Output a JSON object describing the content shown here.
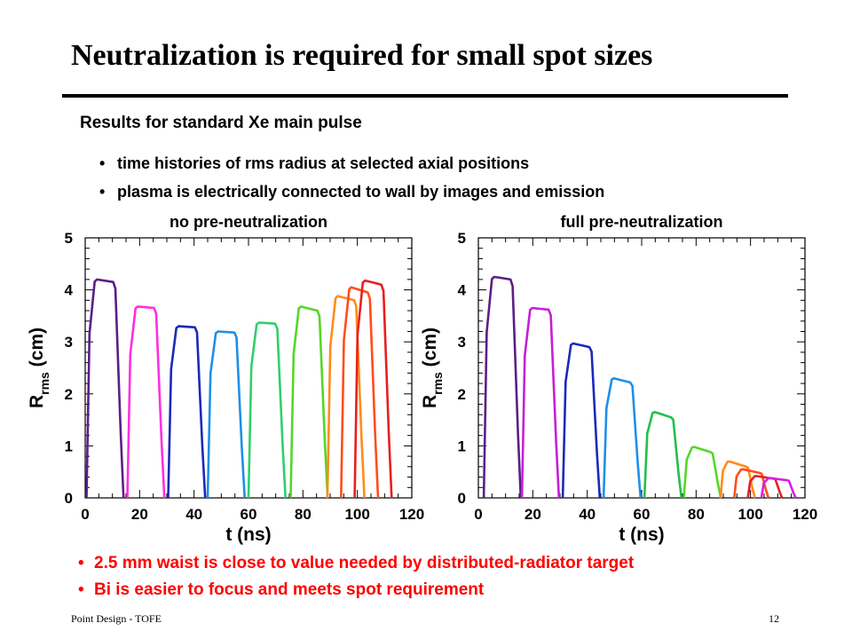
{
  "slide": {
    "title": "Neutralization is required for small spot sizes",
    "subtitle": "Results for standard Xe main pulse",
    "bullets": [
      "time histories of rms radius at selected axial positions",
      "plasma is electrically connected to wall by images and emission"
    ],
    "red_bullets": [
      "2.5 mm waist is close to value needed by distributed-radiator target",
      "Bi is easier to focus and meets spot requirement"
    ],
    "bullet_symbol": "•",
    "footer_left": "Point Design - TOFE",
    "page_number": "12",
    "accent_color": "#ff0000"
  },
  "chart_data": [
    {
      "type": "line",
      "title": "no pre-neutralization",
      "xlabel": "t (ns)",
      "ylabel_main": "R",
      "ylabel_sub": "rms",
      "ylabel_unit": " (cm)",
      "xlim": [
        0,
        120
      ],
      "ylim": [
        0,
        5
      ],
      "xticks": [
        0,
        20,
        40,
        60,
        80,
        100,
        120
      ],
      "yticks": [
        0,
        1,
        2,
        3,
        4,
        5
      ],
      "series": [
        {
          "color": "#5a1f86",
          "t0": 0.5,
          "rise": 3,
          "fall": 3,
          "peak": 4.2,
          "end": 4.15
        },
        {
          "color": "#ff2ee0",
          "t0": 15.5,
          "rise": 3,
          "fall": 3,
          "peak": 3.68,
          "end": 3.65
        },
        {
          "color": "#1a2ab8",
          "t0": 30.5,
          "rise": 3,
          "fall": 3,
          "peak": 3.3,
          "end": 3.28
        },
        {
          "color": "#1f8fe8",
          "t0": 45,
          "rise": 3,
          "fall": 3,
          "peak": 3.2,
          "end": 3.18
        },
        {
          "color": "#2fd06a",
          "t0": 60,
          "rise": 3,
          "fall": 3,
          "peak": 3.37,
          "end": 3.35
        },
        {
          "color": "#56d629",
          "t0": 75.5,
          "rise": 3,
          "fall": 3,
          "peak": 3.68,
          "end": 3.6
        },
        {
          "color": "#ff8c1a",
          "t0": 89,
          "rise": 3,
          "fall": 3,
          "peak": 3.88,
          "end": 3.8
        },
        {
          "color": "#ff4d1a",
          "t0": 94,
          "rise": 3,
          "fall": 3,
          "peak": 4.05,
          "end": 3.95
        },
        {
          "color": "#e81f1f",
          "t0": 99,
          "rise": 3,
          "fall": 3,
          "peak": 4.18,
          "end": 4.1
        }
      ]
    },
    {
      "type": "line",
      "title": "full pre-neutralization",
      "xlabel": "t (ns)",
      "ylabel_main": "R",
      "ylabel_sub": "rms",
      "ylabel_unit": " (cm)",
      "xlim": [
        0,
        120
      ],
      "ylim": [
        0,
        5
      ],
      "xticks": [
        0,
        20,
        40,
        60,
        80,
        100,
        120
      ],
      "yticks": [
        0,
        1,
        2,
        3,
        4,
        5
      ],
      "series": [
        {
          "color": "#5a1f86",
          "t0": 2,
          "rise": 3,
          "fall": 3,
          "peak": 4.25,
          "end": 4.2
        },
        {
          "color": "#c61fd6",
          "t0": 16,
          "rise": 3,
          "fall": 3,
          "peak": 3.65,
          "end": 3.62
        },
        {
          "color": "#1a2ab8",
          "t0": 31,
          "rise": 3,
          "fall": 3,
          "peak": 2.97,
          "end": 2.9
        },
        {
          "color": "#1f8fe8",
          "t0": 46,
          "rise": 3,
          "fall": 3,
          "peak": 2.3,
          "end": 2.22
        },
        {
          "color": "#21c04a",
          "t0": 61,
          "rise": 3,
          "fall": 3,
          "peak": 1.65,
          "end": 1.55
        },
        {
          "color": "#56d629",
          "t0": 75.5,
          "rise": 3,
          "fall": 3,
          "peak": 0.98,
          "end": 0.88
        },
        {
          "color": "#ff8c1a",
          "t0": 89,
          "rise": 2.5,
          "fall": 2.5,
          "peak": 0.7,
          "end": 0.6
        },
        {
          "color": "#ff4d1a",
          "t0": 94,
          "rise": 2.5,
          "fall": 2.5,
          "peak": 0.55,
          "end": 0.48
        },
        {
          "color": "#e81f1f",
          "t0": 99,
          "rise": 2.5,
          "fall": 2.5,
          "peak": 0.42,
          "end": 0.37
        },
        {
          "color": "#d81fe0",
          "t0": 104,
          "rise": 2.5,
          "fall": 2.5,
          "peak": 0.38,
          "end": 0.34
        }
      ]
    }
  ]
}
